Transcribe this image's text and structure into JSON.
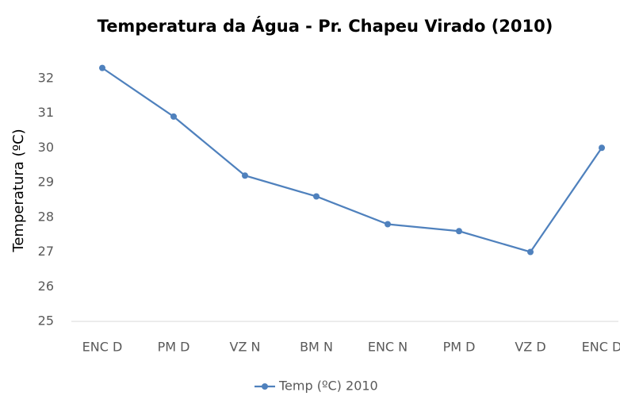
{
  "chart_data": {
    "type": "line",
    "title": "Temperatura da Água - Pr. Chapeu Virado (2010)",
    "ylabel": "Temperatura (ºC)",
    "categories": [
      "ENC D",
      "PM D",
      "VZ N",
      "BM N",
      "ENC N",
      "PM D",
      "VZ D",
      "ENC D"
    ],
    "series": [
      {
        "name": "Temp (ºC) 2010",
        "color": "#4f81bd",
        "values": [
          32.3,
          30.9,
          29.2,
          28.6,
          27.8,
          27.6,
          27.0,
          30.0
        ]
      }
    ],
    "ylim": [
      25,
      33
    ],
    "yticks": [
      25,
      26,
      27,
      28,
      29,
      30,
      31,
      32
    ],
    "grid": false,
    "legend": "bottom"
  }
}
